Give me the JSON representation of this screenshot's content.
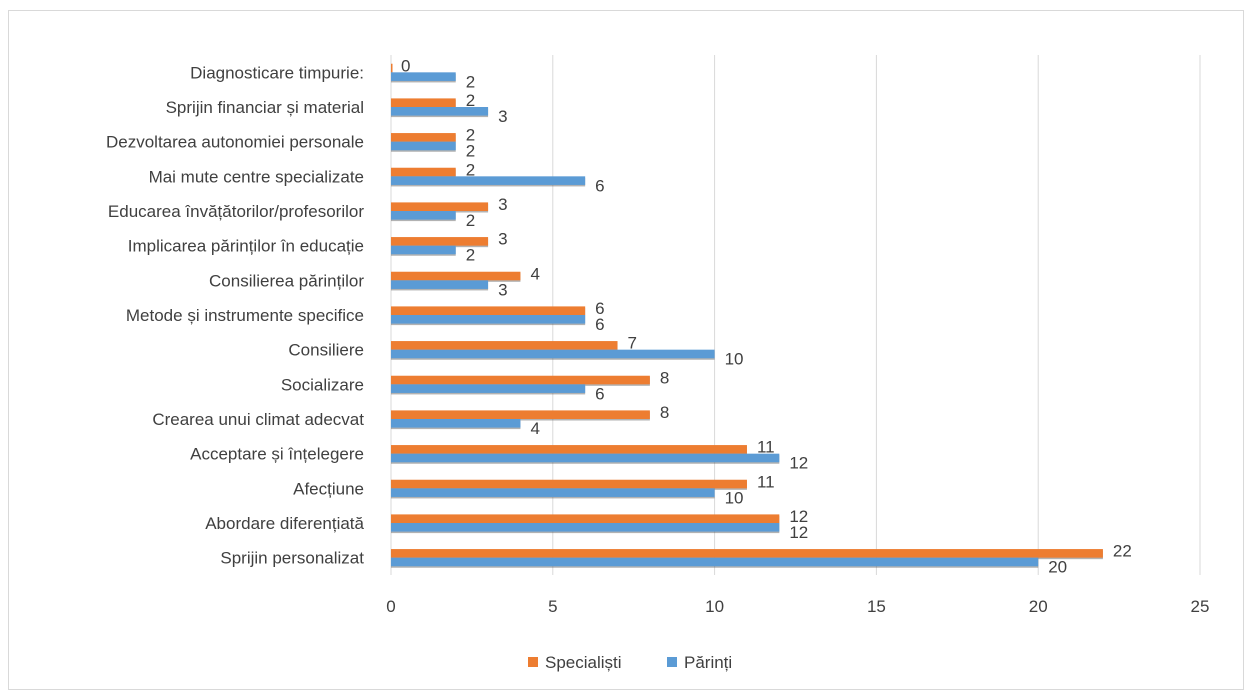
{
  "chart_data": {
    "type": "bar",
    "orientation": "horizontal",
    "categories": [
      "Diagnosticare timpurie:",
      "Sprijin financiar și material",
      "Dezvoltarea autonomiei personale",
      "Mai mute centre specializate",
      "Educarea învățătorilor/profesorilor",
      "Implicarea părinților în educație",
      "Consilierea părinților",
      "Metode și instrumente specifice",
      "Consiliere",
      "Socializare",
      "Crearea unui climat adecvat",
      "Acceptare și înțelegere",
      "Afecțiune",
      "Abordare diferențiată",
      "Sprijin personalizat"
    ],
    "series": [
      {
        "name": "Specialiști",
        "color": "#ed7d31",
        "values": [
          0,
          2,
          2,
          2,
          3,
          3,
          4,
          6,
          7,
          8,
          8,
          11,
          11,
          12,
          22
        ]
      },
      {
        "name": "Părinți",
        "color": "#5b9bd5",
        "values": [
          2,
          3,
          2,
          6,
          2,
          2,
          3,
          6,
          10,
          6,
          4,
          12,
          10,
          12,
          20
        ]
      }
    ],
    "xlim": [
      0,
      25
    ],
    "xticks": [
      "0",
      "5",
      "10",
      "15",
      "20",
      "25"
    ],
    "grid": "vertical",
    "legend": "bottom-center"
  }
}
